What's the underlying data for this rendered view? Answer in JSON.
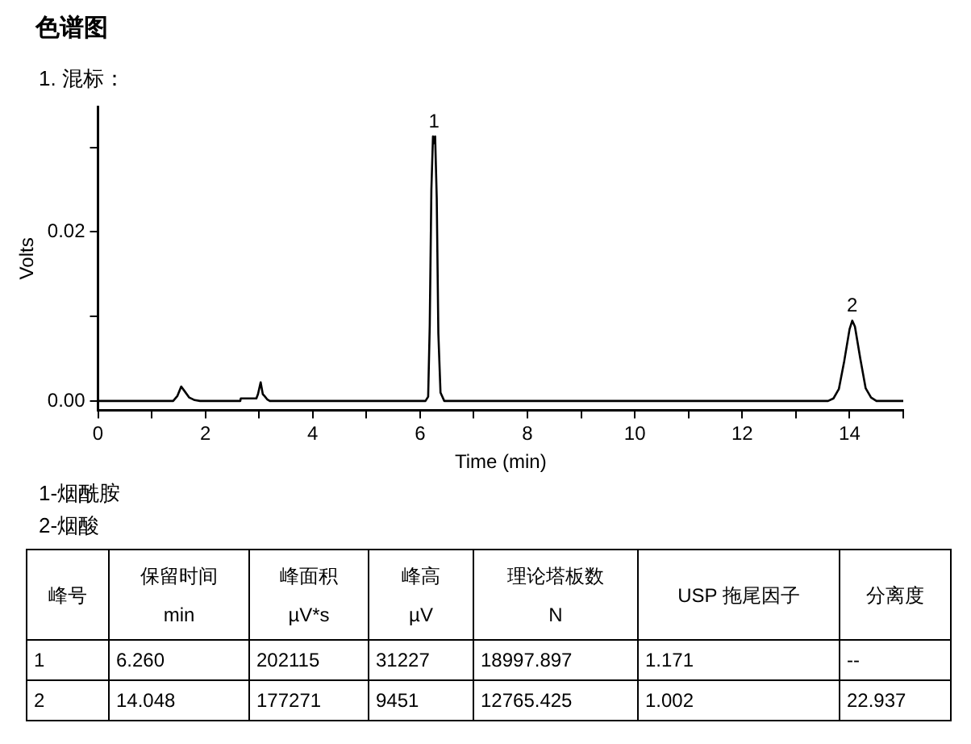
{
  "chart_data": {
    "type": "line",
    "title": "色谱图",
    "subtitle": "1. 混标：",
    "xlabel": "Time (min)",
    "ylabel": "Volts",
    "x": [
      0,
      1.4,
      1.48,
      1.55,
      1.62,
      1.7,
      1.8,
      1.9,
      2.65,
      2.66,
      2.95,
      2.98,
      3.03,
      3.07,
      3.1,
      3.15,
      3.2,
      6.1,
      6.15,
      6.18,
      6.21,
      6.24,
      6.26,
      6.28,
      6.31,
      6.34,
      6.38,
      6.45,
      13.6,
      13.7,
      13.8,
      13.9,
      14.0,
      14.05,
      14.1,
      14.2,
      14.3,
      14.4,
      14.5,
      15
    ],
    "series": [
      {
        "color": "#000000",
        "values": [
          0,
          0,
          0.0006,
          0.0017,
          0.0011,
          0.0004,
          0.0001,
          0,
          0,
          0.0003,
          0.0003,
          0.0008,
          0.0022,
          0.0008,
          0.0006,
          0.0002,
          0,
          0,
          0.0005,
          0.009,
          0.025,
          0.0313,
          0.0305,
          0.0313,
          0.024,
          0.008,
          0.001,
          0,
          0,
          0.0003,
          0.0014,
          0.0047,
          0.0085,
          0.0095,
          0.0088,
          0.005,
          0.0015,
          0.0004,
          0,
          0
        ]
      }
    ],
    "xlim": [
      0,
      15
    ],
    "ylim": [
      -0.0011,
      0.0348
    ],
    "xticks": [
      0,
      {
        "value": 1,
        "label": null
      },
      2,
      {
        "value": 3,
        "label": null
      },
      4,
      {
        "value": 5,
        "label": null
      },
      6,
      {
        "value": 7,
        "label": null
      },
      8,
      {
        "value": 9,
        "label": null
      },
      10,
      {
        "value": 11,
        "label": null
      },
      12,
      {
        "value": 13,
        "label": null
      },
      14,
      {
        "value": 15,
        "label": null
      }
    ],
    "yticks": [
      {
        "value": 0,
        "label": "0.00"
      },
      {
        "value": 0.01,
        "label": null
      },
      {
        "value": 0.02,
        "label": "0.02"
      },
      {
        "value": 0.03,
        "label": null
      }
    ],
    "grid": false,
    "legend": false,
    "marker": "none",
    "line_style": "solid",
    "annotations": [
      {
        "text": "1",
        "x": 6.26,
        "y": 0.0313
      },
      {
        "text": "2",
        "x": 14.05,
        "y": 0.0095
      },
      "1-烟酰胺",
      "2-烟酸",
      "峰号",
      "保留时间\nmin",
      "峰面积\nµV*s",
      "峰高\nµV",
      "理论塔板数\nN",
      "USP 拖尾因子",
      "分离度",
      "1",
      "6.260",
      "202115",
      "31227",
      "18997.897",
      "1.171",
      "--",
      "2",
      "14.048",
      "177271",
      "9451",
      "12765.425",
      "1.002",
      "22.937"
    ]
  }
}
